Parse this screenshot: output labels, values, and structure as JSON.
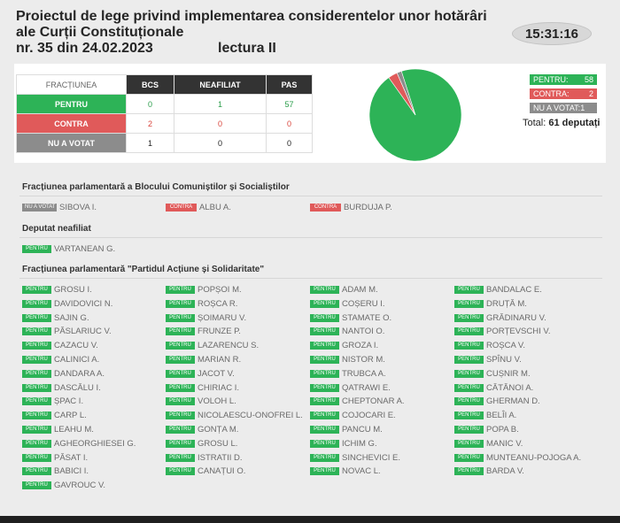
{
  "header": {
    "title": "Proiectul de lege privind implementarea considerentelor unor hotărâri ale Curții Constituționale",
    "doc_number": "nr. 35 din 24.02.2023",
    "reading": "lectura II",
    "clock": "15:31:16"
  },
  "table": {
    "col_fractiunea": "FRACȚIUNEA",
    "columns": [
      "BCS",
      "NEAFILIAT",
      "PAS"
    ],
    "rows": [
      {
        "label": "PENTRU",
        "values": [
          "0",
          "1",
          "57"
        ]
      },
      {
        "label": "CONTRA",
        "values": [
          "2",
          "0",
          "0"
        ]
      },
      {
        "label": "NU A VOTAT",
        "values": [
          "1",
          "0",
          "0"
        ]
      }
    ]
  },
  "chart_data": {
    "type": "pie",
    "categories": [
      "PENTRU",
      "CONTRA",
      "NU A VOTAT"
    ],
    "values": [
      58,
      2,
      1
    ],
    "colors": [
      "#2db357",
      "#e05a5a",
      "#8c8c8c"
    ]
  },
  "legend": {
    "pentru_label": "PENTRU:",
    "pentru_value": "58",
    "contra_label": "CONTRA:",
    "contra_value": "2",
    "nuavotat_label": "NU A VOTAT:",
    "nuavotat_value": "1"
  },
  "total": {
    "label": "Total:",
    "value": "61 deputați"
  },
  "colors": {
    "pentru": "#2db357",
    "contra": "#e05a5a",
    "nu_a_votat": "#8c8c8c"
  },
  "sections": {
    "bcs": {
      "title": "Fracțiunea parlamentară a Blocului Comuniștilor și Socialiștilor",
      "deputies": [
        {
          "vote": "NU A VOTAT",
          "name": "SIBOVA I."
        },
        {
          "vote": "CONTRA",
          "name": "ALBU A."
        },
        {
          "vote": "CONTRA",
          "name": "BURDUJA P."
        }
      ]
    },
    "neafiliat": {
      "title": "Deputat neafiliat",
      "deputies": [
        {
          "vote": "PENTRU",
          "name": "VARTANEAN G."
        }
      ]
    },
    "pas": {
      "title": "Fracțiunea parlamentară \"Partidul Acțiune și Solidaritate\"",
      "columns": [
        [
          {
            "vote": "PENTRU",
            "name": "GROSU I."
          },
          {
            "vote": "PENTRU",
            "name": "DAVIDOVICI N."
          },
          {
            "vote": "PENTRU",
            "name": "SAJIN G."
          },
          {
            "vote": "PENTRU",
            "name": "PĂSLARIUC V."
          },
          {
            "vote": "PENTRU",
            "name": "CAZACU V."
          },
          {
            "vote": "PENTRU",
            "name": "CALINICI A."
          },
          {
            "vote": "PENTRU",
            "name": "DANDARA A."
          },
          {
            "vote": "PENTRU",
            "name": "DASCĂLU I."
          },
          {
            "vote": "PENTRU",
            "name": "ȘPAC I."
          },
          {
            "vote": "PENTRU",
            "name": "CARP L."
          },
          {
            "vote": "PENTRU",
            "name": "LEAHU M."
          },
          {
            "vote": "PENTRU",
            "name": "AGHEORGHIESEI G."
          },
          {
            "vote": "PENTRU",
            "name": "PĂSAT I."
          },
          {
            "vote": "PENTRU",
            "name": "BABICI I."
          },
          {
            "vote": "PENTRU",
            "name": "GAVROUC V."
          }
        ],
        [
          {
            "vote": "PENTRU",
            "name": "POPȘOI M."
          },
          {
            "vote": "PENTRU",
            "name": "ROȘCA R."
          },
          {
            "vote": "PENTRU",
            "name": "ȘOIMARU V."
          },
          {
            "vote": "PENTRU",
            "name": "FRUNZE P."
          },
          {
            "vote": "PENTRU",
            "name": "LAZARENCU S."
          },
          {
            "vote": "PENTRU",
            "name": "MARIAN R."
          },
          {
            "vote": "PENTRU",
            "name": "JACOT V."
          },
          {
            "vote": "PENTRU",
            "name": "CHIRIAC I."
          },
          {
            "vote": "PENTRU",
            "name": "VOLOH L."
          },
          {
            "vote": "PENTRU",
            "name": "NICOLAESCU-ONOFREI L."
          },
          {
            "vote": "PENTRU",
            "name": "GONȚA M."
          },
          {
            "vote": "PENTRU",
            "name": "GROSU L."
          },
          {
            "vote": "PENTRU",
            "name": "ISTRATII D."
          },
          {
            "vote": "PENTRU",
            "name": "CANAȚUI O."
          }
        ],
        [
          {
            "vote": "PENTRU",
            "name": "ADAM M."
          },
          {
            "vote": "PENTRU",
            "name": "COȘERU I."
          },
          {
            "vote": "PENTRU",
            "name": "STAMATE O."
          },
          {
            "vote": "PENTRU",
            "name": "NANTOI O."
          },
          {
            "vote": "PENTRU",
            "name": "GROZA I."
          },
          {
            "vote": "PENTRU",
            "name": "NISTOR M."
          },
          {
            "vote": "PENTRU",
            "name": "TRUBCA A."
          },
          {
            "vote": "PENTRU",
            "name": "QATRAWI E."
          },
          {
            "vote": "PENTRU",
            "name": "CHEPTONAR A."
          },
          {
            "vote": "PENTRU",
            "name": "COJOCARI E."
          },
          {
            "vote": "PENTRU",
            "name": "PANCU M."
          },
          {
            "vote": "PENTRU",
            "name": "ICHIM G."
          },
          {
            "vote": "PENTRU",
            "name": "SINCHEVICI E."
          },
          {
            "vote": "PENTRU",
            "name": "NOVAC L."
          }
        ],
        [
          {
            "vote": "PENTRU",
            "name": "BANDALAC E."
          },
          {
            "vote": "PENTRU",
            "name": "DRUȚĂ M."
          },
          {
            "vote": "PENTRU",
            "name": "GRĂDINARU V."
          },
          {
            "vote": "PENTRU",
            "name": "PORȚEVSCHI V."
          },
          {
            "vote": "PENTRU",
            "name": "ROȘCA V."
          },
          {
            "vote": "PENTRU",
            "name": "SPÎNU V."
          },
          {
            "vote": "PENTRU",
            "name": "CUȘNIR M."
          },
          {
            "vote": "PENTRU",
            "name": "CĂTĂNOI A."
          },
          {
            "vote": "PENTRU",
            "name": "GHERMAN D."
          },
          {
            "vote": "PENTRU",
            "name": "BELÎI A."
          },
          {
            "vote": "PENTRU",
            "name": "POPA B."
          },
          {
            "vote": "PENTRU",
            "name": "MANIC V."
          },
          {
            "vote": "PENTRU",
            "name": "MUNTEANU-POJOGA A."
          },
          {
            "vote": "PENTRU",
            "name": "BARDA V."
          }
        ]
      ]
    }
  }
}
